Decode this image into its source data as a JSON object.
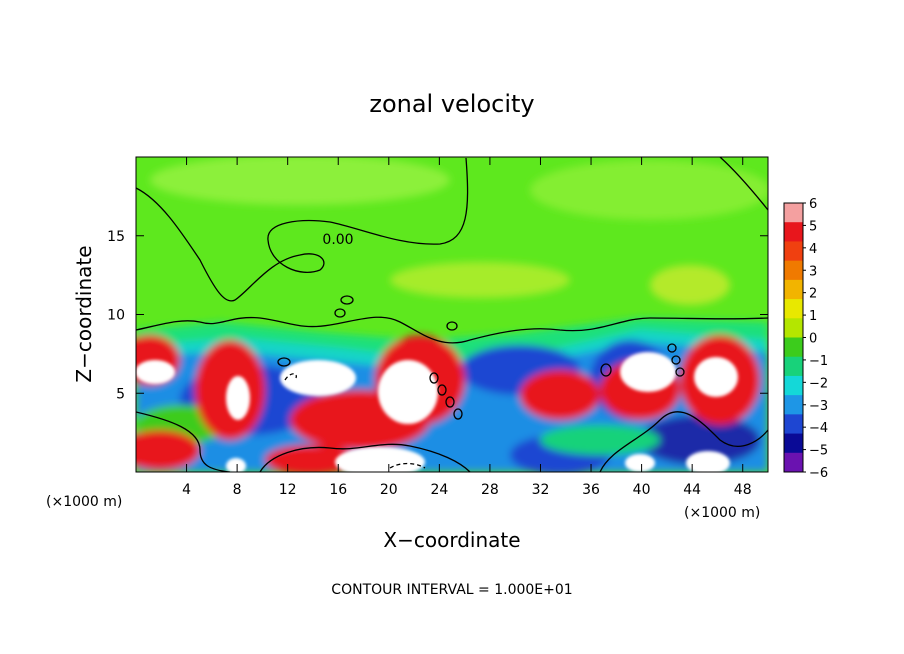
{
  "chart_data": {
    "type": "heatmap",
    "title": "zonal velocity",
    "xlabel": "X−coordinate",
    "ylabel": "Z−coordinate",
    "x_unit_left": "(×1000 m)",
    "x_unit_right": "(×1000 m)",
    "footer": "CONTOUR INTERVAL = 1.000E+01",
    "contour_label": "0.00",
    "xlim": [
      0,
      50
    ],
    "ylim": [
      0,
      20
    ],
    "x_ticks": [
      4,
      8,
      12,
      16,
      20,
      24,
      28,
      32,
      36,
      40,
      44,
      48
    ],
    "x_tick_labels": [
      "4",
      "8",
      "12",
      "16",
      "20",
      "24",
      "28",
      "32",
      "36",
      "40",
      "44",
      "48"
    ],
    "y_ticks": [
      5,
      10,
      15
    ],
    "y_tick_labels": [
      "5",
      "10",
      "15"
    ],
    "colorbar": {
      "min": -6,
      "max": 6,
      "tick_labels": [
        "6",
        "5",
        "4",
        "3",
        "2",
        "1",
        "0",
        "−1",
        "−2",
        "−3",
        "−4",
        "−5",
        "−6"
      ],
      "colors": [
        "#f4a0a0",
        "#e8161c",
        "#f04010",
        "#f07a00",
        "#f2b400",
        "#e8e800",
        "#b4e600",
        "#3ccc1c",
        "#18d27a",
        "#14d8d8",
        "#1e96e6",
        "#1e46d2",
        "#0a0a96",
        "#6a12b0"
      ]
    },
    "features": [
      {
        "kind": "positive_core",
        "x": 1.5,
        "z": 6.3,
        "label": "white"
      },
      {
        "kind": "positive_core",
        "x": 8.0,
        "z": 4.8,
        "label": "white"
      },
      {
        "kind": "positive_core",
        "x": 14.5,
        "z": 5.8,
        "label": "white"
      },
      {
        "kind": "positive_core",
        "x": 22.0,
        "z": 4.8,
        "label": "white"
      },
      {
        "kind": "positive_core",
        "x": 21.0,
        "z": 1.0,
        "label": "white"
      },
      {
        "kind": "positive_core",
        "x": 39.5,
        "z": 6.5,
        "label": "white"
      },
      {
        "kind": "positive_core",
        "x": 45.8,
        "z": 6.0,
        "label": "white"
      },
      {
        "kind": "positive_core",
        "x": 44.5,
        "z": 0.8,
        "label": "white"
      }
    ]
  }
}
